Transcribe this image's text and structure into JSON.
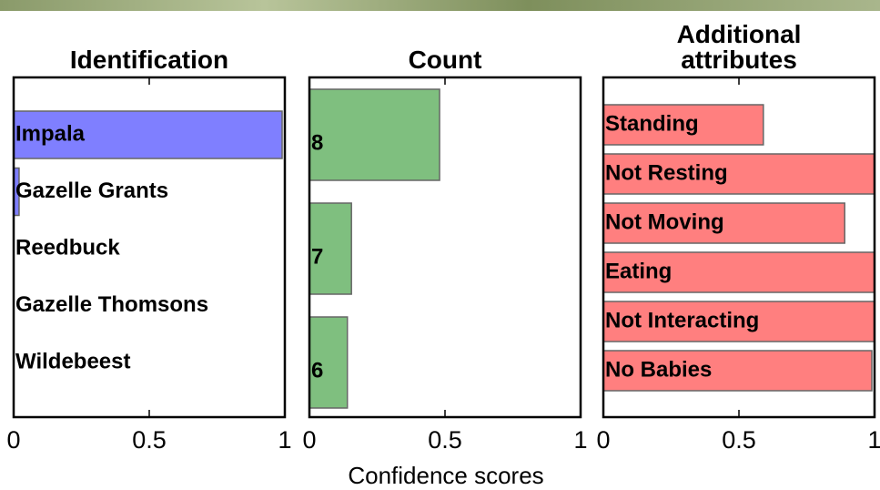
{
  "chart_data": [
    {
      "type": "barh",
      "title": "Identification",
      "categories": [
        "Impala",
        "Gazelle Grants",
        "Reedbuck",
        "Gazelle Thomsons",
        "Wildebeest"
      ],
      "values": [
        0.99,
        0.02,
        0,
        0,
        0
      ],
      "color": "#7f7fff",
      "xlim": [
        0,
        1
      ],
      "xticks": [
        0,
        0.5,
        1
      ]
    },
    {
      "type": "barh",
      "title": "Count",
      "categories": [
        "8",
        "7",
        "6"
      ],
      "values": [
        0.48,
        0.155,
        0.14
      ],
      "color": "#7fbf7f",
      "xlim": [
        0,
        1
      ],
      "xticks": [
        0,
        0.5,
        1
      ]
    },
    {
      "type": "barh",
      "title": "Additional attributes",
      "categories": [
        "Standing",
        "Not Resting",
        "Not Moving",
        "Eating",
        "Not Interacting",
        "No Babies"
      ],
      "values": [
        0.59,
        1.0,
        0.89,
        1.0,
        1.0,
        0.99
      ],
      "color": "#ff7f7f",
      "xlim": [
        0,
        1
      ],
      "xticks": [
        0,
        0.5,
        1
      ]
    }
  ],
  "xlabel": "Confidence scores"
}
